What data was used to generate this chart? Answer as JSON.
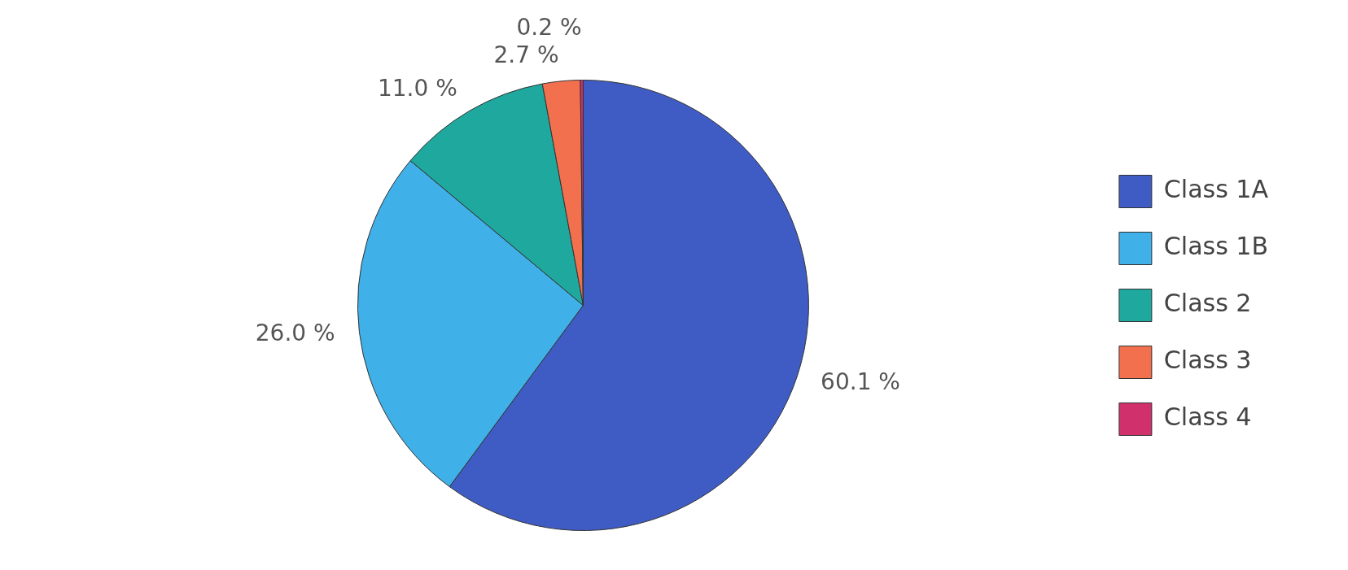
{
  "chart_data": {
    "type": "pie",
    "categories": [
      "Class 1A",
      "Class 1B",
      "Class 2",
      "Class 3",
      "Class 4"
    ],
    "values": [
      60.1,
      26.0,
      11.0,
      2.7,
      0.2
    ],
    "value_labels": [
      "60.1 %",
      "26.0 %",
      "11.0 %",
      "2.7 %",
      "0.2 %"
    ],
    "colors": [
      "#3f5cc4",
      "#3fb0e8",
      "#1fa89e",
      "#f2704e",
      "#d0306c"
    ],
    "legend": "right"
  }
}
